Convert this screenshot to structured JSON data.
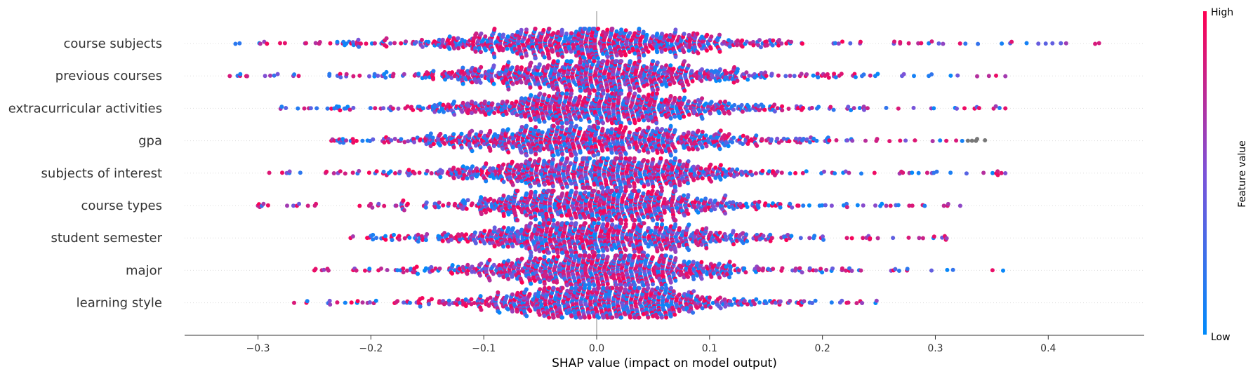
{
  "chart_data": {
    "type": "scatter",
    "subtype": "shap-beeswarm",
    "title": "",
    "xlabel": "SHAP value (impact on model output)",
    "ylabel": "",
    "xlim": [
      -0.365,
      0.485
    ],
    "xticks": [
      -0.3,
      -0.2,
      -0.1,
      0.0,
      0.1,
      0.2,
      0.3,
      0.4
    ],
    "xtick_labels": [
      "−0.3",
      "−0.2",
      "−0.1",
      "0.0",
      "0.1",
      "0.2",
      "0.3",
      "0.4"
    ],
    "grid": false,
    "zero_line": true,
    "colors": {
      "low": "#008bfb",
      "mid": "#7c52d8",
      "high": "#ff0051",
      "missing": "#777777"
    },
    "colorbar": {
      "title": "Feature value",
      "high_label": "High",
      "low_label": "Low",
      "placement": "right"
    },
    "features": [
      {
        "name": "course subjects",
        "min": -0.32,
        "max": 0.445,
        "spread": 0.085,
        "peak": -0.005,
        "density": 6.5
      },
      {
        "name": "previous courses",
        "min": -0.325,
        "max": 0.362,
        "spread": 0.075,
        "peak": 0.0,
        "density": 6.0
      },
      {
        "name": "extracurricular activities",
        "min": -0.28,
        "max": 0.362,
        "spread": 0.075,
        "peak": 0.0,
        "density": 6.0
      },
      {
        "name": "gpa",
        "min": -0.235,
        "max": 0.344,
        "spread": 0.08,
        "peak": 0.0,
        "density": 6.0,
        "missing_range": [
          0.325,
          0.345
        ]
      },
      {
        "name": "subjects of interest",
        "min": -0.29,
        "max": 0.362,
        "spread": 0.07,
        "peak": 0.0,
        "density": 6.0
      },
      {
        "name": "course types",
        "min": -0.3,
        "max": 0.322,
        "spread": 0.068,
        "peak": 0.0,
        "density": 6.0
      },
      {
        "name": "student semester",
        "min": -0.218,
        "max": 0.31,
        "spread": 0.068,
        "peak": 0.0,
        "density": 6.0
      },
      {
        "name": "major",
        "min": -0.25,
        "max": 0.36,
        "spread": 0.07,
        "peak": 0.0,
        "density": 6.0
      },
      {
        "name": "learning style",
        "min": -0.268,
        "max": 0.248,
        "spread": 0.063,
        "peak": 0.0,
        "density": 5.5
      }
    ]
  }
}
